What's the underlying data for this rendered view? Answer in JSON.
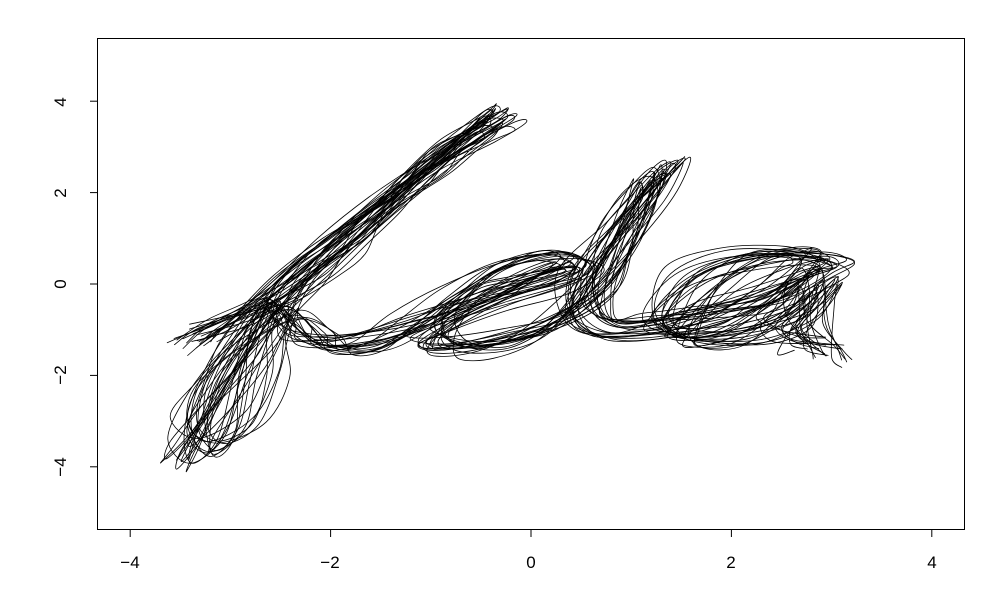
{
  "chart_data": {
    "type": "line",
    "title": "",
    "xlabel": "",
    "ylabel": "",
    "xlim": [
      -4.2,
      4.35
    ],
    "ylim": [
      -5.4,
      5.4
    ],
    "x_ticks": [
      -4,
      -2,
      0,
      2,
      4
    ],
    "y_ticks": [
      -4,
      -2,
      0,
      2,
      4
    ],
    "x_tick_labels": [
      "−4",
      "−2",
      "0",
      "2",
      "4"
    ],
    "y_tick_labels": [
      "−4",
      "−2",
      "0",
      "2",
      "4"
    ],
    "grid": false,
    "line_color": "#000000",
    "trace_count": 22,
    "base_path": [
      [
        -3.4,
        -1.2
      ],
      [
        -3.1,
        -0.9
      ],
      [
        -2.7,
        -0.5
      ],
      [
        -2.3,
        0.2
      ],
      [
        -1.9,
        0.95
      ],
      [
        -1.5,
        1.7
      ],
      [
        -1.1,
        2.45
      ],
      [
        -0.7,
        3.15
      ],
      [
        -0.35,
        3.7
      ],
      [
        -0.35,
        3.55
      ],
      [
        -0.7,
        3.1
      ],
      [
        -1.1,
        2.45
      ],
      [
        -1.5,
        1.7
      ],
      [
        -1.9,
        0.95
      ],
      [
        -2.3,
        0.1
      ],
      [
        -2.6,
        -0.8
      ],
      [
        -2.8,
        -1.9
      ],
      [
        -3.05,
        -3.1
      ],
      [
        -3.35,
        -3.7
      ],
      [
        -3.45,
        -3.3
      ],
      [
        -3.25,
        -2.4
      ],
      [
        -2.9,
        -1.4
      ],
      [
        -2.5,
        -0.55
      ],
      [
        -2.3,
        -0.9
      ],
      [
        -2.15,
        -1.3
      ],
      [
        -1.7,
        -1.25
      ],
      [
        -1.2,
        -0.85
      ],
      [
        -0.7,
        -0.3
      ],
      [
        -0.2,
        0.3
      ],
      [
        0.3,
        0.55
      ],
      [
        0.45,
        0.35
      ],
      [
        0.1,
        0.05
      ],
      [
        -0.4,
        -0.3
      ],
      [
        -0.85,
        -0.75
      ],
      [
        -1.0,
        -1.15
      ],
      [
        -0.8,
        -1.35
      ],
      [
        -0.3,
        -1.25
      ],
      [
        0.2,
        -0.9
      ],
      [
        0.6,
        -0.2
      ],
      [
        0.9,
        0.8
      ],
      [
        1.15,
        1.85
      ],
      [
        1.3,
        2.5
      ],
      [
        1.2,
        2.2
      ],
      [
        0.9,
        1.3
      ],
      [
        0.6,
        0.3
      ],
      [
        0.55,
        -0.5
      ],
      [
        0.75,
        -0.95
      ],
      [
        1.2,
        -0.9
      ],
      [
        1.6,
        -0.75
      ],
      [
        1.95,
        -0.55
      ],
      [
        2.4,
        -0.25
      ],
      [
        2.8,
        0.3
      ],
      [
        2.95,
        0.55
      ],
      [
        2.7,
        0.7
      ],
      [
        2.2,
        0.6
      ],
      [
        1.7,
        0.1
      ],
      [
        1.4,
        -0.8
      ],
      [
        1.55,
        -1.2
      ],
      [
        2.1,
        -1.15
      ],
      [
        2.6,
        -0.6
      ],
      [
        2.85,
        0.1
      ],
      [
        2.75,
        -0.35
      ],
      [
        2.65,
        -0.9
      ],
      [
        2.8,
        -1.3
      ],
      [
        3.0,
        -1.45
      ]
    ]
  }
}
